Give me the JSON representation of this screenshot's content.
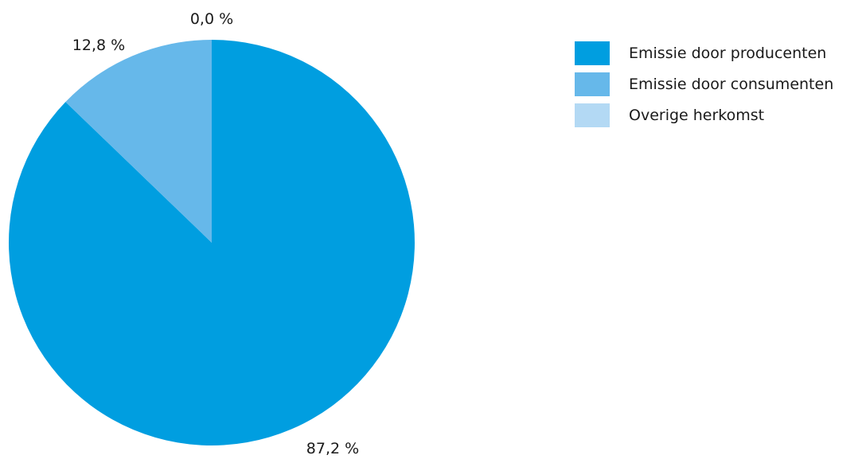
{
  "chart_data": {
    "type": "pie",
    "title": "",
    "start_angle_deg": 0,
    "direction": "clockwise",
    "slices": [
      {
        "label": "Emissie door producenten",
        "value": 87.2,
        "display": "87,2 %",
        "color": "#009ee0"
      },
      {
        "label": "Emissie door consumenten",
        "value": 12.8,
        "display": "12,8 %",
        "color": "#66b8ea"
      },
      {
        "label": "Overige herkomst",
        "value": 0.0,
        "display": "0,0 %",
        "color": "#b3d9f4"
      }
    ],
    "legend_position": "top-right"
  }
}
